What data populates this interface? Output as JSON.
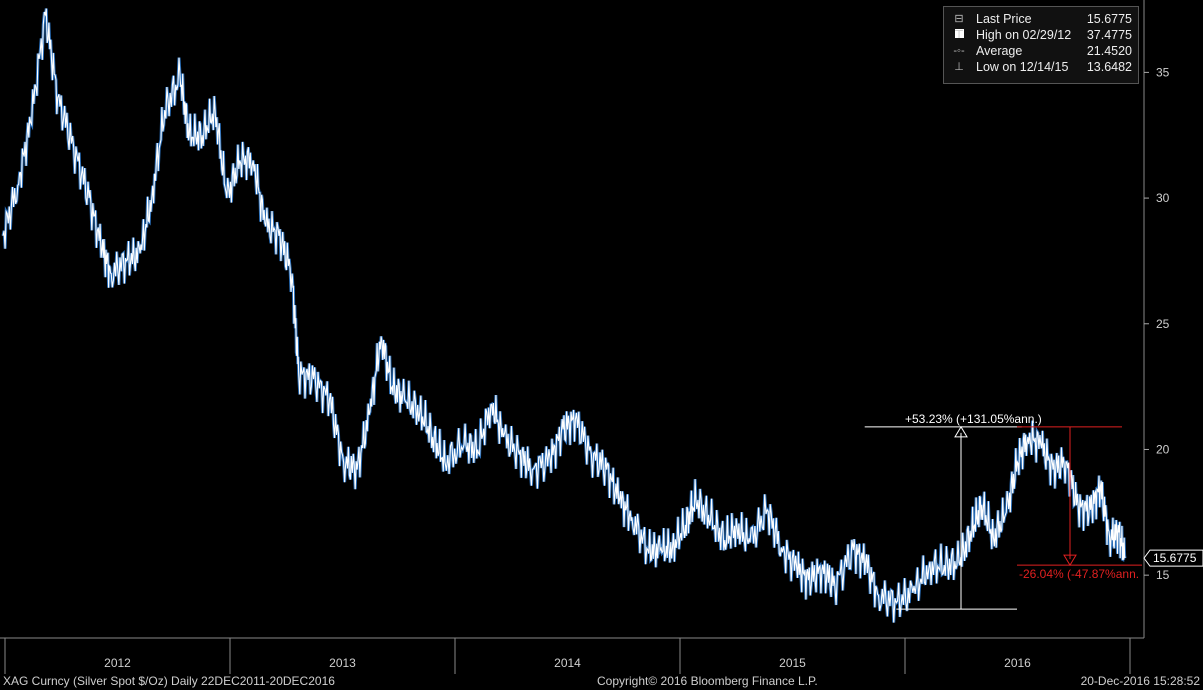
{
  "legend": {
    "rows": [
      {
        "icon": "last-price-icon",
        "label": "Last Price",
        "value": "15.6775"
      },
      {
        "icon": "high-marker-icon",
        "label": "High on 02/29/12",
        "value": "37.4775"
      },
      {
        "icon": "average-marker-icon",
        "label": "Average",
        "value": "21.4520"
      },
      {
        "icon": "low-marker-icon",
        "label": "Low on 12/14/15",
        "value": "13.6482"
      }
    ]
  },
  "footer": {
    "left": "XAG Curncy (Silver Spot  $/Oz)  Daily 22DEC2011-20DEC2016",
    "center": "Copyright© 2016 Bloomberg Finance L.P.",
    "right": "20-Dec-2016 15:28:52"
  },
  "annotations": {
    "up_change": "+53.23%  (+131.05%ann.)",
    "down_change": "-26.04%  (-47.87%ann.",
    "last_price_tag": "15.6775"
  },
  "colors": {
    "background": "#000000",
    "price_line": "#ffffff",
    "price_shade": "#2f7fd6",
    "up_annotation": "#ffffff",
    "down_annotation": "#e02020",
    "grid": "#3a3a3a"
  },
  "chart_data": {
    "type": "line",
    "title": "XAG Curncy (Silver Spot  $/Oz)",
    "xlabel": "",
    "ylabel": "",
    "x_ticks": [
      "2012",
      "2013",
      "2014",
      "2015",
      "2016"
    ],
    "y_ticks": [
      15,
      20,
      25,
      30,
      35
    ],
    "ylim": [
      12.5,
      37.8
    ],
    "xlim": [
      "2011-12-22",
      "2016-12-20"
    ],
    "grid": false,
    "y_axis_position": "right",
    "legend_position": "top-right",
    "series": [
      {
        "name": "Last Price",
        "x": [
          "2011-12-22",
          "2012-01-15",
          "2012-02-05",
          "2012-02-29",
          "2012-03-20",
          "2012-04-15",
          "2012-05-10",
          "2012-05-31",
          "2012-06-15",
          "2012-07-10",
          "2012-08-01",
          "2012-08-20",
          "2012-09-10",
          "2012-10-05",
          "2012-10-20",
          "2012-11-10",
          "2012-12-01",
          "2012-12-20",
          "2013-01-10",
          "2013-02-01",
          "2013-02-20",
          "2013-03-15",
          "2013-04-05",
          "2013-04-16",
          "2013-05-10",
          "2013-06-05",
          "2013-06-28",
          "2013-07-20",
          "2013-08-10",
          "2013-08-28",
          "2013-09-15",
          "2013-10-05",
          "2013-10-30",
          "2013-11-20",
          "2013-12-10",
          "2014-01-10",
          "2014-02-01",
          "2014-02-24",
          "2014-03-15",
          "2014-04-10",
          "2014-05-01",
          "2014-05-30",
          "2014-06-20",
          "2014-07-10",
          "2014-08-05",
          "2014-08-30",
          "2014-09-20",
          "2014-10-10",
          "2014-11-05",
          "2014-11-25",
          "2014-12-15",
          "2015-01-05",
          "2015-01-22",
          "2015-02-15",
          "2015-03-10",
          "2015-03-30",
          "2015-04-20",
          "2015-05-18",
          "2015-06-10",
          "2015-07-05",
          "2015-07-24",
          "2015-08-15",
          "2015-09-05",
          "2015-10-05",
          "2015-10-25",
          "2015-11-15",
          "2015-12-14",
          "2016-01-10",
          "2016-02-05",
          "2016-03-01",
          "2016-03-25",
          "2016-04-15",
          "2016-05-01",
          "2016-05-20",
          "2016-06-10",
          "2016-06-28",
          "2016-07-15",
          "2016-08-05",
          "2016-08-25",
          "2016-09-15",
          "2016-10-05",
          "2016-10-25",
          "2016-11-10",
          "2016-11-25",
          "2016-12-10",
          "2016-12-20"
        ],
        "values": [
          28.5,
          30.5,
          33.0,
          37.3,
          34.0,
          32.0,
          30.0,
          28.0,
          27.0,
          27.5,
          27.8,
          30.0,
          33.5,
          34.8,
          32.5,
          32.5,
          33.5,
          30.0,
          31.5,
          31.5,
          29.0,
          28.5,
          27.0,
          23.0,
          22.8,
          22.0,
          19.5,
          19.2,
          21.5,
          24.5,
          22.5,
          22.0,
          21.5,
          20.5,
          19.5,
          20.2,
          20.0,
          21.8,
          20.5,
          19.8,
          19.2,
          19.6,
          20.8,
          21.2,
          19.8,
          19.2,
          18.0,
          17.3,
          16.0,
          16.0,
          16.1,
          17.0,
          18.0,
          17.2,
          16.4,
          16.9,
          16.3,
          17.6,
          16.1,
          15.3,
          14.8,
          15.2,
          14.6,
          16.0,
          15.5,
          14.2,
          13.9,
          14.3,
          15.3,
          15.4,
          15.5,
          16.8,
          17.8,
          16.5,
          17.5,
          19.5,
          20.5,
          20.2,
          19.2,
          19.5,
          17.7,
          17.6,
          18.5,
          16.5,
          16.7,
          15.68
        ]
      }
    ],
    "annotations": [
      {
        "text": "+53.23%  (+131.05%ann.)",
        "from": {
          "x": "2015-12-14",
          "y": 13.6482
        },
        "to": {
          "x": "2016-07-05",
          "y": 20.9
        }
      },
      {
        "text": "-26.04%  (-47.87%ann.",
        "from": {
          "x": "2016-07-05",
          "y": 20.9
        },
        "to": {
          "x": "2016-12-20",
          "y": 15.4
        }
      }
    ],
    "last_value": 15.6775
  }
}
